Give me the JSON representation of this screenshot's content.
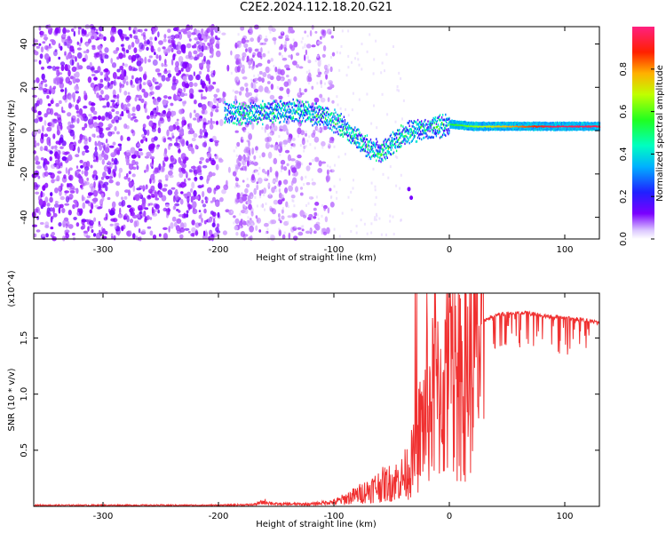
{
  "title": "C2E2.2024.112.18.20.G21",
  "chart_data": [
    {
      "type": "heatmap",
      "xlabel": "Height of straight line (km)",
      "ylabel": "Frequency (Hz)",
      "xlim": [
        -360,
        130
      ],
      "ylim": [
        -50,
        48
      ],
      "x_ticks": [
        -300,
        -200,
        -100,
        0,
        100
      ],
      "y_ticks": [
        -40,
        -20,
        0,
        20,
        40
      ],
      "colorbar": {
        "label": "Normalized spectral amplitude",
        "range": [
          0,
          1
        ],
        "ticks": [
          0.0,
          0.2,
          0.4,
          0.6,
          0.8
        ]
      },
      "ridge": {
        "x": [
          -195,
          -170,
          -150,
          -130,
          -110,
          -95,
          -80,
          -70,
          -60,
          -50,
          -40,
          -30,
          -20,
          -10,
          0,
          20,
          50,
          100,
          130
        ],
        "y": [
          8,
          8,
          9,
          9,
          7,
          3,
          -4,
          -8,
          -10,
          -6,
          -2,
          0,
          1,
          2,
          3,
          2,
          2,
          2,
          2
        ]
      }
    },
    {
      "type": "line",
      "xlabel": "Height of straight line (km)",
      "ylabel": "SNR (10 * v/v)",
      "y_multiplier": "(x10^4)",
      "xlim": [
        -360,
        130
      ],
      "ylim": [
        0,
        1.9
      ],
      "x_ticks": [
        -300,
        -200,
        -100,
        0,
        100
      ],
      "y_ticks": [
        0.5,
        1.0,
        1.5
      ],
      "color": "#f03030",
      "series": [
        {
          "x": [
            -360,
            -300,
            -250,
            -200,
            -170,
            -160,
            -150,
            -120,
            -100,
            -90,
            -80,
            -70,
            -60,
            -50,
            -40,
            -30,
            -25,
            -20,
            -15,
            -10,
            -5,
            0,
            5,
            10,
            15,
            20,
            25,
            30,
            40,
            50,
            60,
            70,
            80,
            90,
            100,
            110,
            120,
            130
          ],
          "values": [
            0.01,
            0.01,
            0.01,
            0.01,
            0.015,
            0.04,
            0.02,
            0.02,
            0.04,
            0.08,
            0.12,
            0.17,
            0.22,
            0.25,
            0.3,
            0.5,
            0.8,
            1.0,
            1.1,
            1.15,
            1.2,
            1.2,
            1.25,
            1.35,
            1.45,
            1.55,
            1.62,
            1.67,
            1.72,
            1.74,
            1.75,
            1.74,
            1.72,
            1.71,
            1.7,
            1.69,
            1.67,
            1.65
          ]
        }
      ]
    }
  ]
}
